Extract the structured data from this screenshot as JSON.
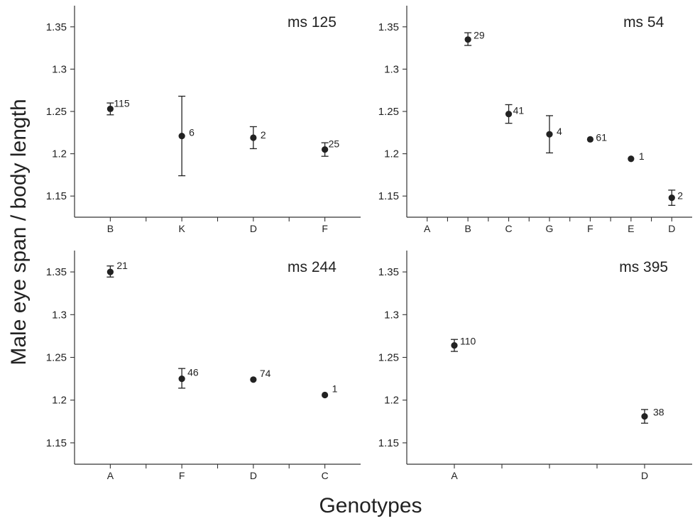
{
  "figure": {
    "ylabel": "Male eye span / body length",
    "xlabel": "Genotypes"
  },
  "chart_data": [
    {
      "type": "scatter",
      "title": "ms 125",
      "categories": [
        "B",
        "K",
        "D",
        "F"
      ],
      "y_ticks": [
        "1.15",
        "1.2",
        "1.25",
        "1.3",
        "1.35"
      ],
      "ylim": [
        1.125,
        1.375
      ],
      "points": [
        {
          "category": "B",
          "y": 1.253,
          "err_low": 1.246,
          "err_high": 1.26,
          "n": "115"
        },
        {
          "category": "K",
          "y": 1.221,
          "err_low": 1.174,
          "err_high": 1.268,
          "n": "6"
        },
        {
          "category": "D",
          "y": 1.219,
          "err_low": 1.206,
          "err_high": 1.232,
          "n": "2"
        },
        {
          "category": "F",
          "y": 1.205,
          "err_low": 1.197,
          "err_high": 1.213,
          "n": "25"
        }
      ]
    },
    {
      "type": "scatter",
      "title": "ms 54",
      "categories": [
        "A",
        "B",
        "C",
        "G",
        "F",
        "E",
        "D"
      ],
      "y_ticks": [
        "1.15",
        "1.2",
        "1.25",
        "1.3",
        "1.35"
      ],
      "ylim": [
        1.125,
        1.375
      ],
      "points": [
        {
          "category": "B",
          "y": 1.335,
          "err_low": 1.328,
          "err_high": 1.343,
          "n": "29"
        },
        {
          "category": "C",
          "y": 1.247,
          "err_low": 1.236,
          "err_high": 1.258,
          "n": "41"
        },
        {
          "category": "G",
          "y": 1.223,
          "err_low": 1.201,
          "err_high": 1.245,
          "n": "4"
        },
        {
          "category": "F",
          "y": 1.217,
          "err_low": null,
          "err_high": null,
          "n": "61"
        },
        {
          "category": "E",
          "y": 1.194,
          "err_low": null,
          "err_high": null,
          "n": "1"
        },
        {
          "category": "D",
          "y": 1.148,
          "err_low": 1.139,
          "err_high": 1.157,
          "n": "2"
        }
      ]
    },
    {
      "type": "scatter",
      "title": "ms 244",
      "categories": [
        "A",
        "F",
        "D",
        "C"
      ],
      "y_ticks": [
        "1.15",
        "1.2",
        "1.25",
        "1.3",
        "1.35"
      ],
      "ylim": [
        1.125,
        1.375
      ],
      "points": [
        {
          "category": "A",
          "y": 1.35,
          "err_low": 1.344,
          "err_high": 1.357,
          "n": "21"
        },
        {
          "category": "F",
          "y": 1.225,
          "err_low": 1.214,
          "err_high": 1.237,
          "n": "46"
        },
        {
          "category": "D",
          "y": 1.224,
          "err_low": null,
          "err_high": null,
          "n": "74"
        },
        {
          "category": "C",
          "y": 1.206,
          "err_low": null,
          "err_high": null,
          "n": "1"
        }
      ]
    },
    {
      "type": "scatter",
      "title": "ms 395",
      "categories": [
        "A",
        "",
        "D"
      ],
      "y_ticks": [
        "1.15",
        "1.2",
        "1.25",
        "1.3",
        "1.35"
      ],
      "ylim": [
        1.125,
        1.375
      ],
      "points": [
        {
          "category": "A",
          "y": 1.264,
          "err_low": 1.257,
          "err_high": 1.271,
          "n": "110"
        },
        {
          "category": "D",
          "y": 1.181,
          "err_low": 1.173,
          "err_high": 1.189,
          "n": "38"
        }
      ]
    }
  ]
}
